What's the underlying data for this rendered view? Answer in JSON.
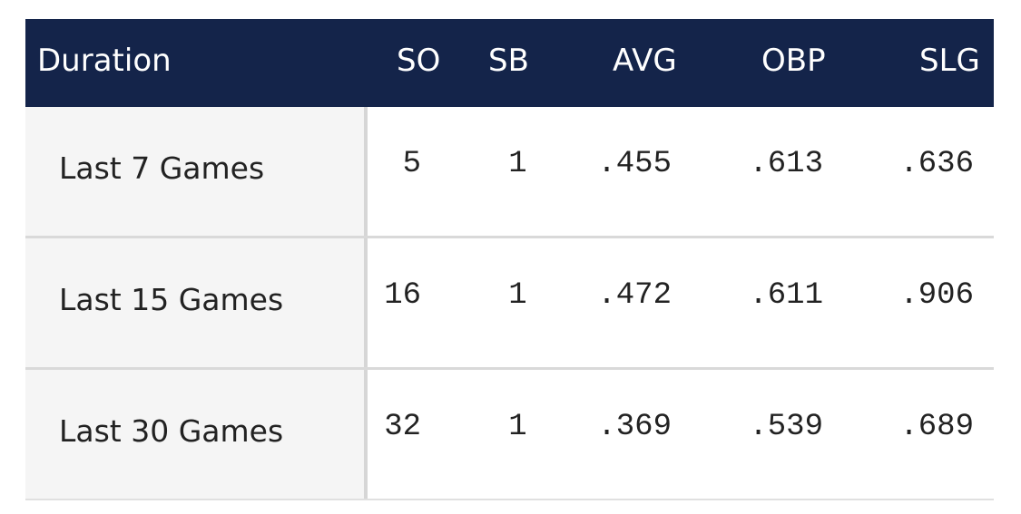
{
  "header": {
    "duration": "Duration",
    "so": "SO",
    "sb": "SB",
    "avg": "AVG",
    "obp": "OBP",
    "slg": "SLG"
  },
  "rows": [
    {
      "duration": "Last 7 Games",
      "so": "5",
      "sb": "1",
      "avg": ".455",
      "obp": ".613",
      "slg": ".636"
    },
    {
      "duration": "Last 15 Games",
      "so": "16",
      "sb": "1",
      "avg": ".472",
      "obp": ".611",
      "slg": ".906"
    },
    {
      "duration": "Last 30 Games",
      "so": "32",
      "sb": "1",
      "avg": ".369",
      "obp": ".539",
      "slg": ".689"
    }
  ],
  "colors": {
    "header_bg": "#14244a",
    "header_text": "#ffffff",
    "label_bg": "#f5f5f5",
    "divider": "#d9d9d9"
  }
}
